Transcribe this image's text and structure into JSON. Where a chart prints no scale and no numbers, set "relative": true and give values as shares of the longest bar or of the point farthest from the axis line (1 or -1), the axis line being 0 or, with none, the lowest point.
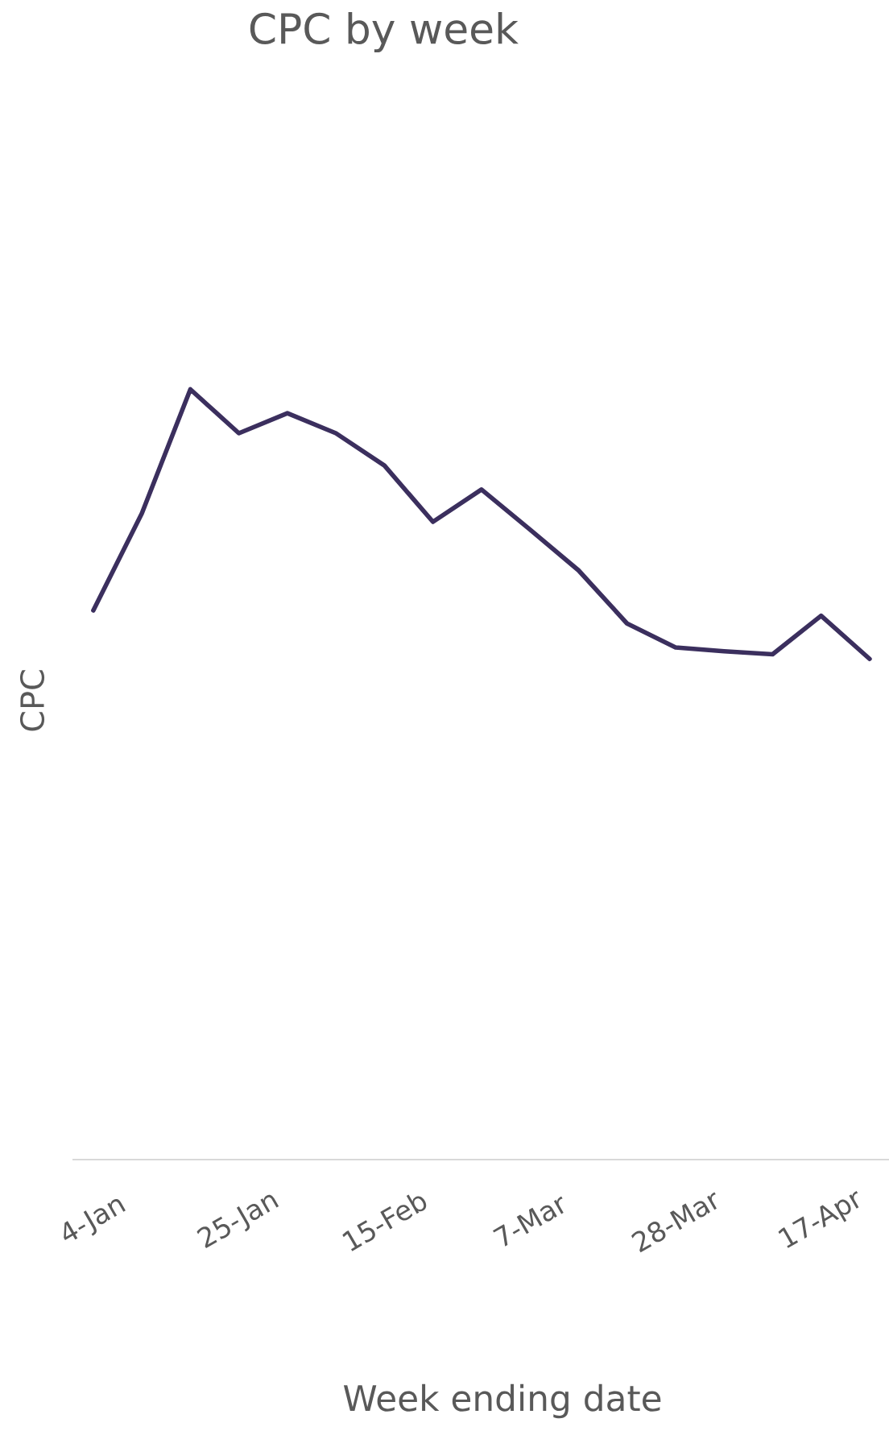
{
  "chart_data": {
    "type": "line",
    "title": "CPC by week",
    "xlabel": "Week ending date",
    "ylabel": "CPC",
    "relative": true,
    "categories": [
      "4-Jan",
      null,
      null,
      "25-Jan",
      null,
      null,
      "15-Feb",
      null,
      null,
      "7-Mar",
      null,
      null,
      "28-Mar",
      null,
      null,
      "17-Apr",
      null
    ],
    "series": [
      {
        "color": "#3b2f5e",
        "values": [
          0.713,
          0.839,
          1,
          0.943,
          0.969,
          0.943,
          0.901,
          0.828,
          0.87,
          0.818,
          0.765,
          0.696,
          0.665,
          0.66,
          0.656,
          0.706,
          0.65
        ]
      }
    ]
  }
}
